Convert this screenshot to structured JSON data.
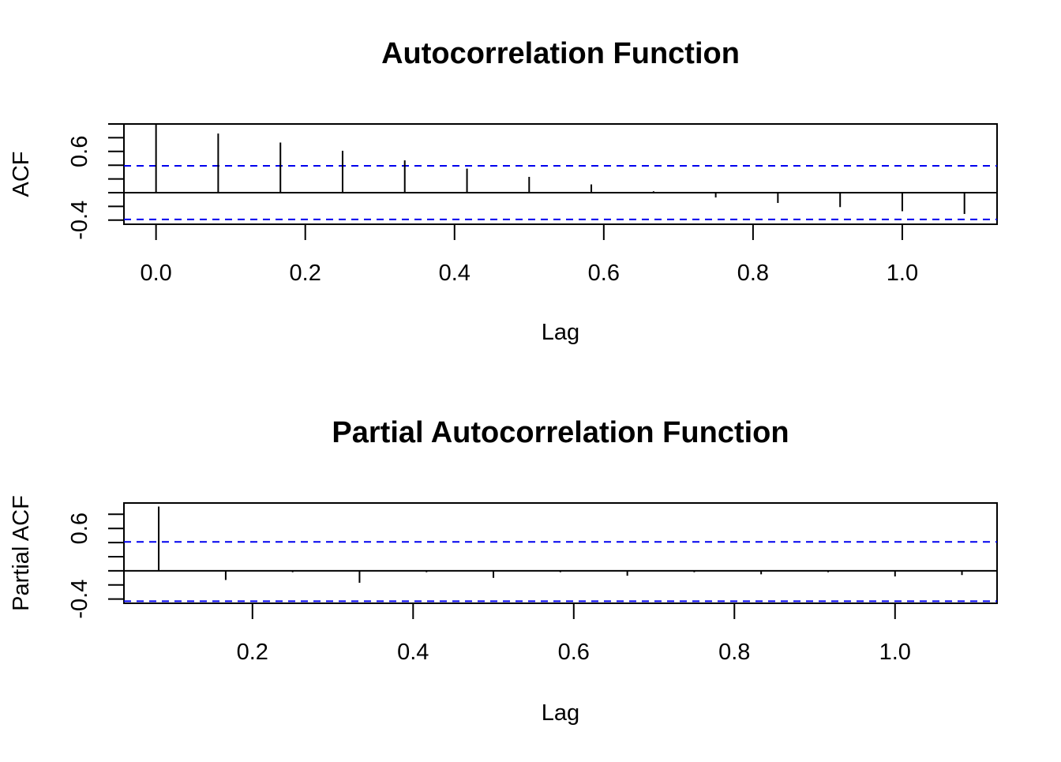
{
  "chart_data": [
    {
      "type": "bar",
      "title": "Autocorrelation Function",
      "xlabel": "Lag",
      "ylabel": "ACF",
      "xlim": [
        -0.043,
        1.127
      ],
      "ylim": [
        -0.46,
        1.0
      ],
      "x_ticks": [
        0.0,
        0.2,
        0.4,
        0.6,
        0.8,
        1.0
      ],
      "x_tick_labels": [
        "0.0",
        "0.2",
        "0.4",
        "0.6",
        "0.8",
        "1.0"
      ],
      "y_ticks": [
        -0.4,
        -0.2,
        0.0,
        0.2,
        0.4,
        0.6,
        0.8,
        1.0
      ],
      "y_tick_labels": [
        "-0.4",
        "0.6"
      ],
      "y_tick_label_values": [
        -0.4,
        0.6
      ],
      "confidence_bounds": [
        0.39,
        -0.39
      ],
      "confidence_color": "#0000ee",
      "x": [
        0.0,
        0.0833,
        0.1667,
        0.25,
        0.3333,
        0.4167,
        0.5,
        0.5833,
        0.6667,
        0.75,
        0.8333,
        0.9167,
        1.0,
        1.0833
      ],
      "values": [
        1.0,
        0.86,
        0.73,
        0.61,
        0.47,
        0.35,
        0.23,
        0.12,
        0.02,
        -0.07,
        -0.15,
        -0.21,
        -0.27,
        -0.31
      ]
    },
    {
      "type": "bar",
      "title": "Partial Autocorrelation Function",
      "xlabel": "Lag",
      "ylabel": "Partial ACF",
      "xlim": [
        0.04,
        1.127
      ],
      "ylim": [
        -0.46,
        0.96
      ],
      "x_ticks": [
        0.2,
        0.4,
        0.6,
        0.8,
        1.0
      ],
      "x_tick_labels": [
        "0.2",
        "0.4",
        "0.6",
        "0.8",
        "1.0"
      ],
      "y_ticks": [
        -0.4,
        -0.2,
        0.0,
        0.2,
        0.4,
        0.6,
        0.8
      ],
      "y_tick_labels": [
        "-0.4",
        "0.6"
      ],
      "y_tick_label_values": [
        -0.4,
        0.6
      ],
      "confidence_bounds": [
        0.41,
        -0.43
      ],
      "confidence_color": "#0000ee",
      "x": [
        0.0833,
        0.1667,
        0.25,
        0.3333,
        0.4167,
        0.5,
        0.5833,
        0.6667,
        0.75,
        0.8333,
        0.9167,
        1.0,
        1.0833
      ],
      "values": [
        0.91,
        -0.13,
        -0.02,
        -0.17,
        -0.02,
        -0.1,
        -0.02,
        -0.07,
        -0.02,
        -0.05,
        -0.02,
        -0.08,
        -0.06
      ]
    }
  ]
}
